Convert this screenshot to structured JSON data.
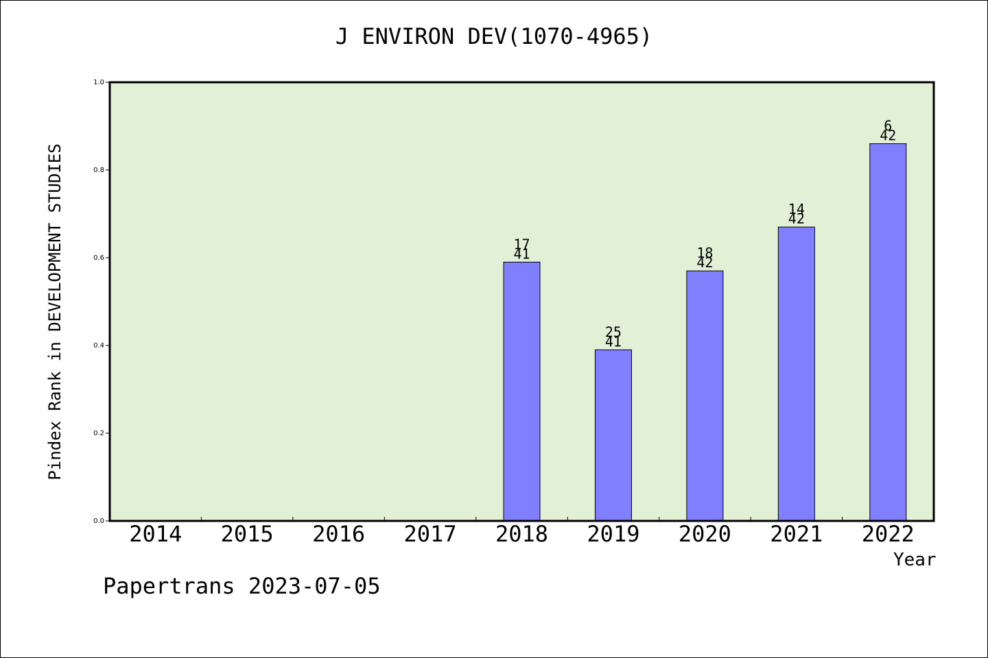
{
  "title": "J ENVIRON DEV(1070-4965)",
  "footer": "Papertrans 2023-07-05",
  "chart_data": {
    "type": "bar",
    "title": "J ENVIRON DEV(1070-4965)",
    "xlabel": "Year",
    "ylabel": "Pindex Rank in DEVELOPMENT STUDIES",
    "categories": [
      "2014",
      "2015",
      "2016",
      "2017",
      "2018",
      "2019",
      "2020",
      "2021",
      "2022"
    ],
    "values": [
      null,
      null,
      null,
      null,
      0.59,
      0.39,
      0.57,
      0.67,
      0.86
    ],
    "rank_labels": [
      null,
      null,
      null,
      null,
      "17",
      "25",
      "18",
      "14",
      "6"
    ],
    "total_labels": [
      null,
      null,
      null,
      null,
      "41",
      "41",
      "42",
      "42",
      "42"
    ],
    "ylim": [
      0,
      1.0
    ],
    "yticks": [
      "0.0",
      "0.2",
      "0.4",
      "0.6",
      "0.8",
      "1.0"
    ],
    "grid": false,
    "colors": {
      "plot_background": "#e2f0d6",
      "bar_fill": "#8080ff",
      "bar_stroke": "#000000"
    }
  }
}
